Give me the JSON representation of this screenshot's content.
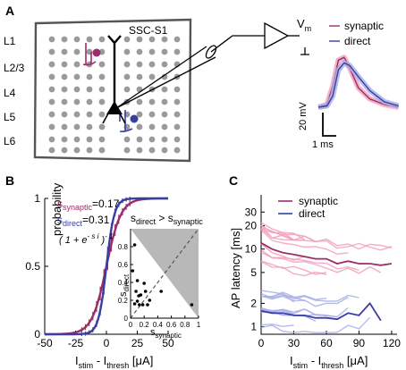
{
  "panels": {
    "a": {
      "letter": "A"
    },
    "b": {
      "letter": "B"
    },
    "c": {
      "letter": "C"
    }
  },
  "schematic": {
    "region_label": "SSC-S1",
    "layers": [
      "L1",
      "L2/3",
      "L4",
      "L5",
      "L6"
    ],
    "amplifier_label": "V",
    "amplifier_sub": "m",
    "legend": [
      {
        "label": "synaptic",
        "color": "#9b2d6b"
      },
      {
        "label": "direct",
        "color": "#3a3ea0"
      }
    ],
    "scale_v": "20 mV",
    "scale_t": "1 ms"
  },
  "colors": {
    "synaptic": "#9b2d6b",
    "direct": "#3a3ea0",
    "synaptic_light": "#f0a0bc",
    "direct_light": "#a6aee6",
    "grid_dot": "#9a9a9a",
    "inset_fill": "#b8b8b8"
  },
  "panel_b": {
    "ylabel": "probability",
    "xlabel_main": "I",
    "xlabel_sub1": "stim",
    "xlabel_mid": " - I",
    "xlabel_sub2": "thresh",
    "xlabel_unit": " [μA]",
    "eq_synaptic_main": "s",
    "eq_synaptic_sub": "synaptic",
    "eq_synaptic_val": "=0.17",
    "eq_direct_main": "s",
    "eq_direct_sub": "direct",
    "eq_direct_val": "=0.31",
    "formula": "( 1 + e",
    "formula_exp": "- s i",
    "formula_end": " )",
    "formula_pow": "- 1",
    "inset_title_s1": "s",
    "inset_title_sub1": "direct",
    "inset_title_op": " > s",
    "inset_title_sub2": "synaptic",
    "inset_ylabel_main": "s",
    "inset_ylabel_sub": "direct",
    "inset_xlabel_main": "s",
    "inset_xlabel_sub": "synaptic"
  },
  "panel_c": {
    "ylabel": "AP latency [ms]",
    "legend": [
      {
        "label": "synaptic",
        "color": "#9b2d6b"
      },
      {
        "label": "direct",
        "color": "#3a3ea0"
      }
    ],
    "xlabel_main": "I",
    "xlabel_sub1": "stim",
    "xlabel_mid": " - I",
    "xlabel_sub2": "thresh",
    "xlabel_unit": " [μA]"
  },
  "chart_data": [
    {
      "type": "line",
      "panel": "A-inset",
      "series": [
        {
          "name": "synaptic",
          "x": [
            0,
            0.3,
            0.5,
            0.7,
            0.9,
            1.1,
            1.4,
            1.8,
            2.3,
            2.8
          ],
          "y": [
            0,
            2,
            15,
            34,
            36,
            28,
            14,
            6,
            2,
            0
          ]
        },
        {
          "name": "direct",
          "x": [
            0,
            0.3,
            0.5,
            0.7,
            0.9,
            1.1,
            1.4,
            1.8,
            2.3,
            2.8
          ],
          "y": [
            0,
            1,
            8,
            27,
            32,
            30,
            22,
            12,
            4,
            1
          ]
        }
      ]
    },
    {
      "type": "line",
      "panel": "B",
      "title": "",
      "xlabel": "I stim - I thresh [μA]",
      "ylabel": "probability",
      "xlim": [
        -50,
        50
      ],
      "ylim": [
        0,
        1
      ],
      "xticks": [
        -50,
        -25,
        0,
        25,
        50
      ],
      "yticks": [
        0,
        0.5,
        1
      ],
      "series": [
        {
          "name": "synaptic",
          "slope": 0.17
        },
        {
          "name": "direct",
          "slope": 0.31
        }
      ],
      "inset": {
        "type": "scatter",
        "xlabel": "s synaptic",
        "ylabel": "s direct",
        "xticks": [
          0,
          0.2,
          0.4,
          0.6,
          0.8,
          1
        ],
        "yticks": [
          0,
          0.2,
          0.4,
          0.6,
          0.8
        ],
        "xlim": [
          0,
          1
        ],
        "ylim": [
          0,
          1
        ],
        "points": [
          [
            0.03,
            0.53
          ],
          [
            0.06,
            0.82
          ],
          [
            0.06,
            0.16
          ],
          [
            0.08,
            0.3
          ],
          [
            0.1,
            0.42
          ],
          [
            0.1,
            0.19
          ],
          [
            0.12,
            0.25
          ],
          [
            0.13,
            0.15
          ],
          [
            0.15,
            0.26
          ],
          [
            0.18,
            0.15
          ],
          [
            0.2,
            0.39
          ],
          [
            0.22,
            0.3
          ],
          [
            0.25,
            0.15
          ],
          [
            0.28,
            0.2
          ],
          [
            0.45,
            0.3
          ],
          [
            0.9,
            0.15
          ]
        ]
      }
    },
    {
      "type": "line",
      "panel": "C",
      "xlabel": "I stim - I thresh [μA]",
      "ylabel": "AP latency [ms]",
      "xlim": [
        0,
        125
      ],
      "ylim": [
        0.8,
        50
      ],
      "yscale": "log",
      "xticks": [
        0,
        30,
        60,
        90,
        120
      ],
      "yticks": [
        1,
        2,
        5,
        10,
        20,
        30
      ],
      "series": [
        {
          "name": "synaptic",
          "x": [
            0,
            10,
            20,
            30,
            40,
            50,
            60,
            70,
            80,
            90,
            100,
            110,
            120
          ],
          "y": [
            12,
            10,
            9,
            8.5,
            8,
            7.5,
            7.5,
            6.5,
            7,
            6.5,
            6.5,
            6.2,
            6.5
          ]
        },
        {
          "name": "direct",
          "x": [
            0,
            10,
            20,
            30,
            40,
            50,
            60,
            70,
            80,
            90,
            100,
            110
          ],
          "y": [
            1.6,
            1.5,
            1.5,
            1.4,
            1.4,
            1.3,
            1.3,
            1.25,
            1.5,
            1.4,
            2.0,
            1.2
          ]
        }
      ]
    }
  ]
}
